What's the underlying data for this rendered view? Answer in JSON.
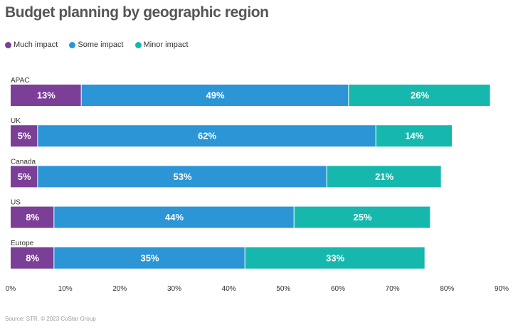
{
  "title": "Budget planning by geographic region",
  "source": "Source: STR. © 2023 CoStar Group",
  "chart_data": {
    "type": "bar",
    "orientation": "horizontal",
    "stacked": true,
    "categories": [
      "APAC",
      "UK",
      "Canada",
      "US",
      "Europe"
    ],
    "series": [
      {
        "name": "Much impact",
        "color": "#7b3f97",
        "values": [
          13,
          5,
          5,
          8,
          8
        ],
        "labels": [
          "13%",
          "5%",
          "5%",
          "8%",
          "8%"
        ]
      },
      {
        "name": "Some impact",
        "color": "#2b95d6",
        "values": [
          49,
          62,
          53,
          44,
          35
        ],
        "labels": [
          "49%",
          "62%",
          "53%",
          "44%",
          "35%"
        ]
      },
      {
        "name": "Minor impact",
        "color": "#16b8ad",
        "values": [
          26,
          14,
          21,
          25,
          33
        ],
        "labels": [
          "26%",
          "14%",
          "21%",
          "25%",
          "33%"
        ]
      }
    ],
    "xlim": [
      0,
      90
    ],
    "xticks": [
      0,
      10,
      20,
      30,
      40,
      50,
      60,
      70,
      80,
      90
    ],
    "xtick_labels": [
      "0%",
      "10%",
      "20%",
      "30%",
      "40%",
      "50%",
      "60%",
      "70%",
      "80%",
      "90%"
    ],
    "grid": false,
    "legend_position": "top-left"
  }
}
